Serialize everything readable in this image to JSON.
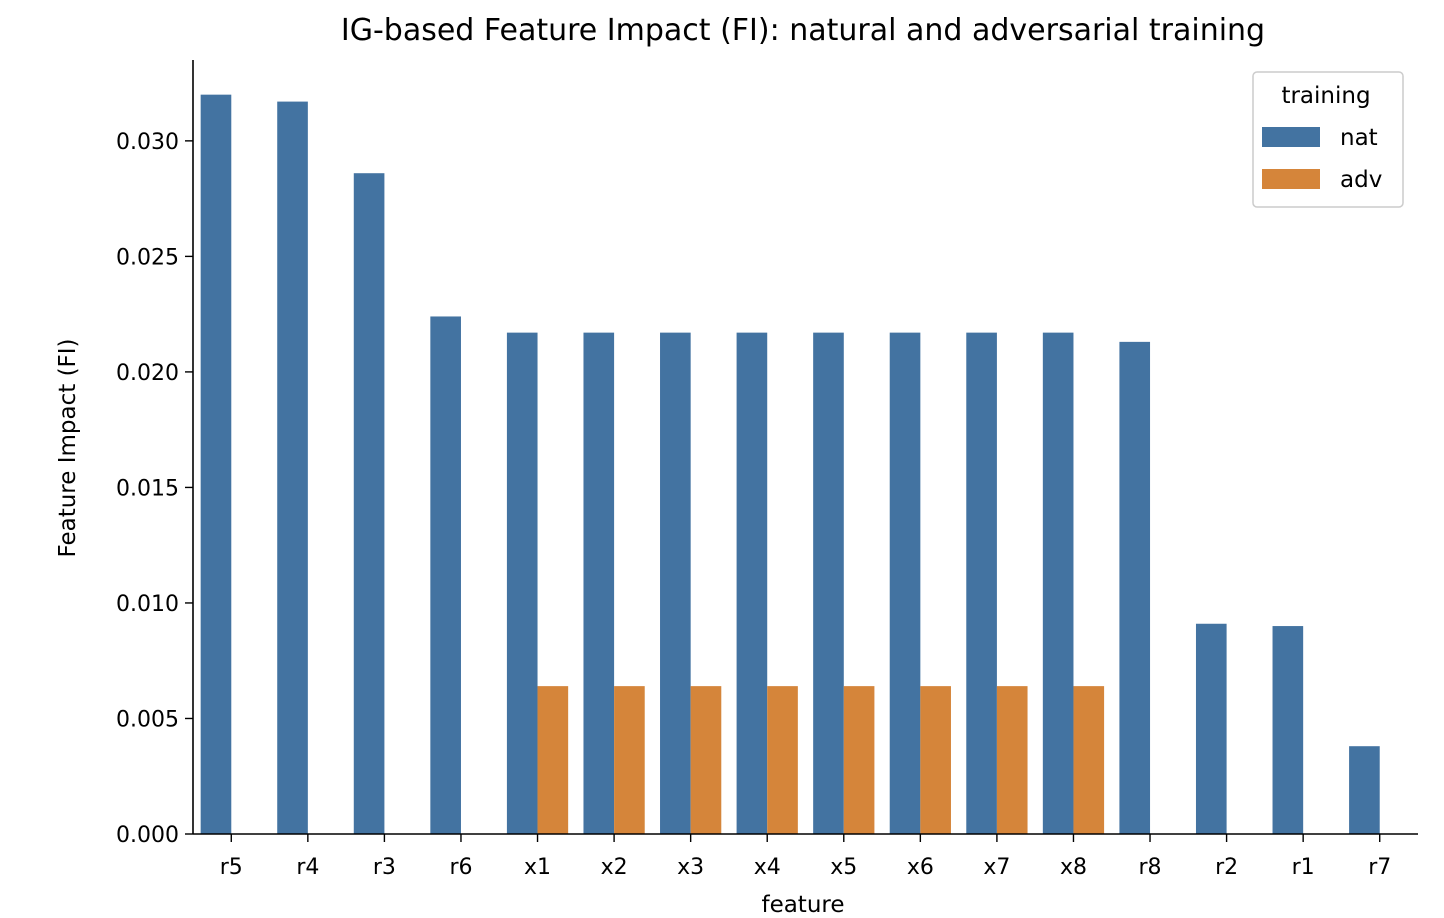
{
  "chart_data": {
    "type": "bar",
    "title": "IG-based Feature Impact (FI): natural and adversarial training",
    "xlabel": "feature",
    "ylabel": "Feature Impact (FI)",
    "categories": [
      "r5",
      "r4",
      "r3",
      "r6",
      "x1",
      "x2",
      "x3",
      "x4",
      "x5",
      "x6",
      "x7",
      "x8",
      "r8",
      "r2",
      "r1",
      "r7"
    ],
    "series": [
      {
        "name": "nat",
        "color": "#4373a1",
        "values": [
          0.032,
          0.0317,
          0.0286,
          0.0224,
          0.0217,
          0.0217,
          0.0217,
          0.0217,
          0.0217,
          0.0217,
          0.0217,
          0.0217,
          0.0213,
          0.0091,
          0.009,
          0.0038
        ]
      },
      {
        "name": "adv",
        "color": "#d5853a",
        "values": [
          0,
          0,
          0,
          0,
          0.0064,
          0.0064,
          0.0064,
          0.0064,
          0.0064,
          0.0064,
          0.0064,
          0.0064,
          0,
          0,
          0,
          0
        ]
      }
    ],
    "ylim": [
      0,
      0.0335
    ],
    "yticks": [
      "0.000",
      "0.005",
      "0.010",
      "0.015",
      "0.020",
      "0.025",
      "0.030"
    ],
    "legend": {
      "title": "training",
      "placement": "top-right"
    },
    "grid": false
  }
}
